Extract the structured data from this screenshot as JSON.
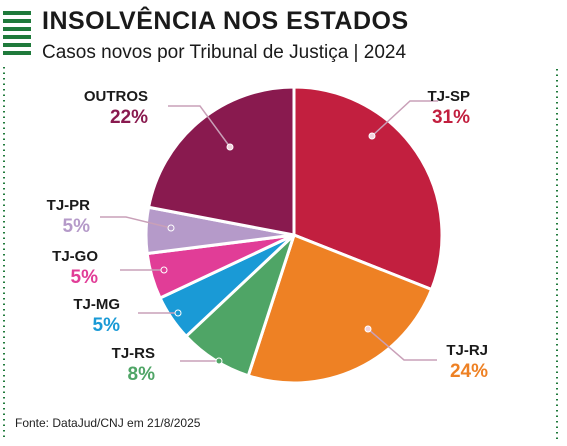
{
  "header": {
    "title": "INSOLVÊNCIA NOS ESTADOS",
    "subtitle": "Casos novos por Tribunal de Justiça | 2024"
  },
  "source": "Fonte: DataJud/CNJ em 21/8/2025",
  "colors": {
    "accent_green": "#1f7a3b",
    "leader": "#c9a0b8"
  },
  "chart_data": {
    "type": "pie",
    "title": "INSOLVÊNCIA NOS ESTADOS",
    "subtitle": "Casos novos por Tribunal de Justiça | 2024",
    "slices": [
      {
        "label": "TJ-SP",
        "value": 31,
        "text": "31%",
        "color": "#c21f3f"
      },
      {
        "label": "TJ-RJ",
        "value": 24,
        "text": "24%",
        "color": "#ee8124"
      },
      {
        "label": "TJ-RS",
        "value": 8,
        "text": "8%",
        "color": "#4fa566"
      },
      {
        "label": "TJ-MG",
        "value": 5,
        "text": "5%",
        "color": "#1a9ad6"
      },
      {
        "label": "TJ-GO",
        "value": 5,
        "text": "5%",
        "color": "#e13d97"
      },
      {
        "label": "TJ-PR",
        "value": 5,
        "text": "5%",
        "color": "#b59ac9"
      },
      {
        "label": "OUTROS",
        "value": 22,
        "text": "22%",
        "color": "#891a4f"
      }
    ]
  }
}
